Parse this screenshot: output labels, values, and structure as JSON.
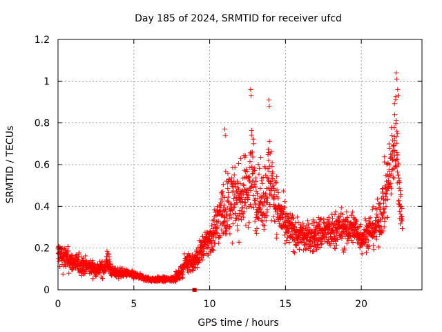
{
  "chart_data": {
    "type": "scatter",
    "title": "Day 185 of 2024, SRMTID for receiver ufcd",
    "xlabel": "GPS time / hours",
    "ylabel": "SRMTID / TECUs",
    "xlim": [
      0,
      24
    ],
    "ylim": [
      0,
      1.2
    ],
    "x_ticks": [
      0,
      5,
      10,
      15,
      20
    ],
    "x_tick_labels": [
      "0",
      "5",
      "10",
      "15",
      "20"
    ],
    "y_ticks": [
      0,
      0.2,
      0.4,
      0.6,
      0.8,
      1.0,
      1.2
    ],
    "y_tick_labels": [
      "0",
      "0.2",
      "0.4",
      "0.6",
      "0.8",
      "1",
      "1.2"
    ],
    "grid": true,
    "marker": "+",
    "color": "#ff0000",
    "sample_step_hours": 0.02,
    "x_end": 22.7,
    "series": [
      {
        "name": "SRMTID",
        "envelope_x": [
          0,
          0.5,
          1,
          1.5,
          2,
          2.5,
          3,
          3.3,
          3.5,
          4,
          4.5,
          5,
          5.5,
          6,
          6.5,
          7,
          7.5,
          8,
          8.5,
          9,
          9.5,
          10,
          10.5,
          11,
          11.5,
          12,
          12.5,
          12.8,
          13,
          13.5,
          14,
          14.5,
          15,
          15.5,
          16,
          16.5,
          17,
          17.5,
          18,
          18.5,
          19,
          19.5,
          20,
          20.5,
          21,
          21.5,
          22,
          22.3,
          22.5,
          22.7
        ],
        "envelope_mean": [
          0.17,
          0.15,
          0.13,
          0.12,
          0.11,
          0.1,
          0.1,
          0.14,
          0.09,
          0.08,
          0.08,
          0.07,
          0.06,
          0.05,
          0.05,
          0.05,
          0.05,
          0.07,
          0.14,
          0.13,
          0.2,
          0.24,
          0.32,
          0.4,
          0.42,
          0.44,
          0.48,
          0.6,
          0.45,
          0.42,
          0.55,
          0.38,
          0.3,
          0.28,
          0.26,
          0.25,
          0.26,
          0.28,
          0.27,
          0.3,
          0.28,
          0.3,
          0.25,
          0.28,
          0.3,
          0.42,
          0.6,
          0.78,
          0.45,
          0.35
        ],
        "envelope_spread": [
          0.06,
          0.05,
          0.04,
          0.04,
          0.03,
          0.03,
          0.03,
          0.06,
          0.02,
          0.02,
          0.015,
          0.015,
          0.01,
          0.01,
          0.01,
          0.01,
          0.01,
          0.02,
          0.04,
          0.04,
          0.05,
          0.07,
          0.1,
          0.13,
          0.14,
          0.13,
          0.15,
          0.2,
          0.13,
          0.12,
          0.18,
          0.1,
          0.08,
          0.07,
          0.06,
          0.06,
          0.07,
          0.07,
          0.07,
          0.08,
          0.07,
          0.07,
          0.06,
          0.07,
          0.08,
          0.12,
          0.16,
          0.2,
          0.1,
          0.06
        ],
        "outliers": [
          {
            "x": 11.0,
            "y": 0.77
          },
          {
            "x": 12.7,
            "y": 0.96
          },
          {
            "x": 13.9,
            "y": 0.91
          },
          {
            "x": 22.3,
            "y": 1.04
          },
          {
            "x": 22.4,
            "y": 0.96
          },
          {
            "x": 9.0,
            "y": 0.0
          }
        ]
      }
    ]
  }
}
